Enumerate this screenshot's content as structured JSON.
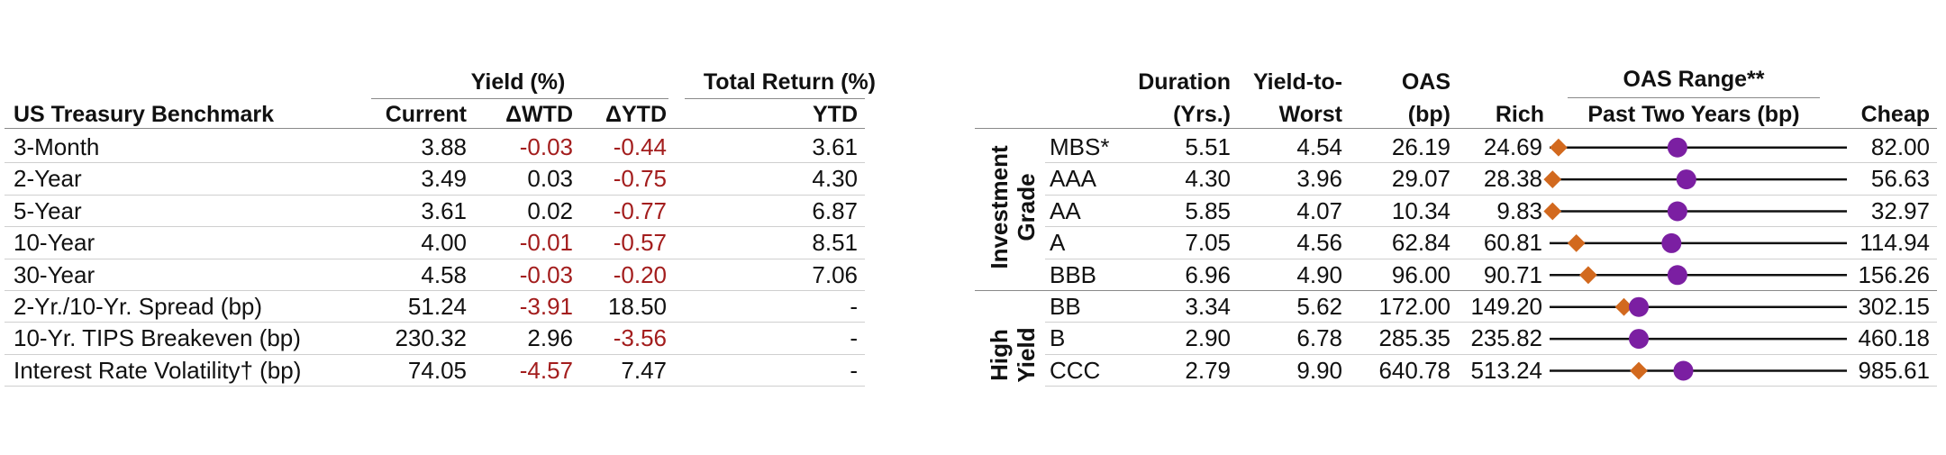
{
  "treasury": {
    "group_headers": {
      "yield": "Yield (%)",
      "total_return": "Total Return (%)"
    },
    "columns": [
      "US Treasury Benchmark",
      "Current",
      "ΔWTD",
      "ΔYTD",
      "YTD"
    ],
    "rows": [
      {
        "name": "3-Month",
        "current": "3.88",
        "wtd": "-0.03",
        "ytd_chg": "-0.44",
        "ytd_ret": "3.61"
      },
      {
        "name": "2-Year",
        "current": "3.49",
        "wtd": "0.03",
        "ytd_chg": "-0.75",
        "ytd_ret": "4.30"
      },
      {
        "name": "5-Year",
        "current": "3.61",
        "wtd": "0.02",
        "ytd_chg": "-0.77",
        "ytd_ret": "6.87"
      },
      {
        "name": "10-Year",
        "current": "4.00",
        "wtd": "-0.01",
        "ytd_chg": "-0.57",
        "ytd_ret": "8.51"
      },
      {
        "name": "30-Year",
        "current": "4.58",
        "wtd": "-0.03",
        "ytd_chg": "-0.20",
        "ytd_ret": "7.06"
      },
      {
        "name": "2-Yr./10-Yr. Spread (bp)",
        "current": "51.24",
        "wtd": "-3.91",
        "ytd_chg": "18.50",
        "ytd_ret": "-"
      },
      {
        "name": "10-Yr. TIPS Breakeven (bp)",
        "current": "230.32",
        "wtd": "2.96",
        "ytd_chg": "-3.56",
        "ytd_ret": "-"
      },
      {
        "name": "Interest Rate Volatility† (bp)",
        "current": "74.05",
        "wtd": "-4.57",
        "ytd_chg": "7.47",
        "ytd_ret": "-"
      }
    ]
  },
  "credit": {
    "headers": {
      "duration": [
        "Duration",
        "(Yrs.)"
      ],
      "ytw": [
        "Yield-to-",
        "Worst"
      ],
      "oas": [
        "OAS",
        "(bp)"
      ],
      "rich": "Rich",
      "range": [
        "OAS Range**",
        "Past Two Years (bp)"
      ],
      "cheap": "Cheap"
    },
    "groups": [
      {
        "label": [
          "Investment",
          "Grade"
        ]
      },
      {
        "label": [
          "High",
          "Yield"
        ]
      }
    ],
    "rows": [
      {
        "name": "MBS*",
        "duration": "5.51",
        "ytw": "4.54",
        "oas": "26.19",
        "rich": "24.69",
        "cheap": "82.00",
        "current_frac": 0.43,
        "prior_frac": 0.03
      },
      {
        "name": "AAA",
        "duration": "4.30",
        "ytw": "3.96",
        "oas": "29.07",
        "rich": "28.38",
        "cheap": "56.63",
        "current_frac": 0.46,
        "prior_frac": 0.01
      },
      {
        "name": "AA",
        "duration": "5.85",
        "ytw": "4.07",
        "oas": "10.34",
        "rich": "9.83",
        "cheap": "32.97",
        "current_frac": 0.43,
        "prior_frac": 0.01
      },
      {
        "name": "A",
        "duration": "7.05",
        "ytw": "4.56",
        "oas": "62.84",
        "rich": "60.81",
        "cheap": "114.94",
        "current_frac": 0.41,
        "prior_frac": 0.09
      },
      {
        "name": "BBB",
        "duration": "6.96",
        "ytw": "4.90",
        "oas": "96.00",
        "rich": "90.71",
        "cheap": "156.26",
        "current_frac": 0.43,
        "prior_frac": 0.13
      },
      {
        "name": "BB",
        "duration": "3.34",
        "ytw": "5.62",
        "oas": "172.00",
        "rich": "149.20",
        "cheap": "302.15",
        "current_frac": 0.3,
        "prior_frac": 0.25
      },
      {
        "name": "B",
        "duration": "2.90",
        "ytw": "6.78",
        "oas": "285.35",
        "rich": "235.82",
        "cheap": "460.18",
        "current_frac": 0.3,
        "prior_frac": 0.3
      },
      {
        "name": "CCC",
        "duration": "2.79",
        "ytw": "9.90",
        "oas": "640.78",
        "rich": "513.24",
        "cheap": "985.61",
        "current_frac": 0.45,
        "prior_frac": 0.3
      }
    ]
  },
  "colors": {
    "negative": "#a31d1d",
    "current_marker": "#7b1fa2",
    "prior_marker": "#d2691e",
    "range_line": "#111111"
  }
}
